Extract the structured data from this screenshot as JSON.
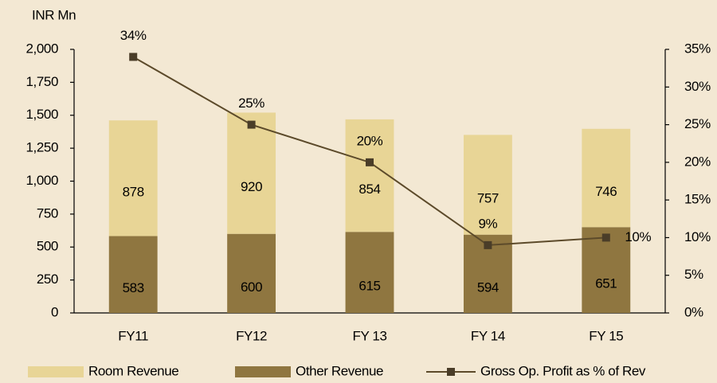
{
  "chart_data": {
    "type": "bar",
    "stacked": true,
    "y_label": "INR Mn",
    "categories": [
      "FY11",
      "FY12",
      "FY 13",
      "FY 14",
      "FY 15"
    ],
    "series": [
      {
        "name": "Room Revenue",
        "color": "#e8d596",
        "values": [
          878,
          920,
          854,
          757,
          746
        ]
      },
      {
        "name": "Other Revenue",
        "color": "#8f7640",
        "values": [
          583,
          600,
          615,
          594,
          651
        ]
      },
      {
        "name": "Gross Op. Profit as % of Rev",
        "type": "line",
        "axis": "y2",
        "color": "#5c4a2a",
        "values": [
          34,
          25,
          20,
          9,
          10
        ],
        "value_labels": [
          "34%",
          "25%",
          "20%",
          "9%",
          "10%"
        ]
      }
    ],
    "ylim": [
      0,
      2000
    ],
    "yticks": [
      0,
      250,
      500,
      750,
      {
        "value": 1000,
        "label": "1,000"
      },
      {
        "value": 1250,
        "label": "1,250"
      },
      {
        "value": 1500,
        "label": "1,500"
      },
      {
        "value": 1750,
        "label": "1,750"
      },
      {
        "value": 2000,
        "label": "2,000"
      }
    ],
    "y2lim": [
      0,
      35
    ],
    "y2ticks": [
      {
        "value": 0,
        "label": "0%"
      },
      {
        "value": 5,
        "label": "5%"
      },
      {
        "value": 10,
        "label": "10%"
      },
      {
        "value": 15,
        "label": "15%"
      },
      {
        "value": 20,
        "label": "20%"
      },
      {
        "value": 25,
        "label": "25%"
      },
      {
        "value": 30,
        "label": "30%"
      },
      {
        "value": 35,
        "label": "35%"
      }
    ],
    "legend": "bottom"
  }
}
